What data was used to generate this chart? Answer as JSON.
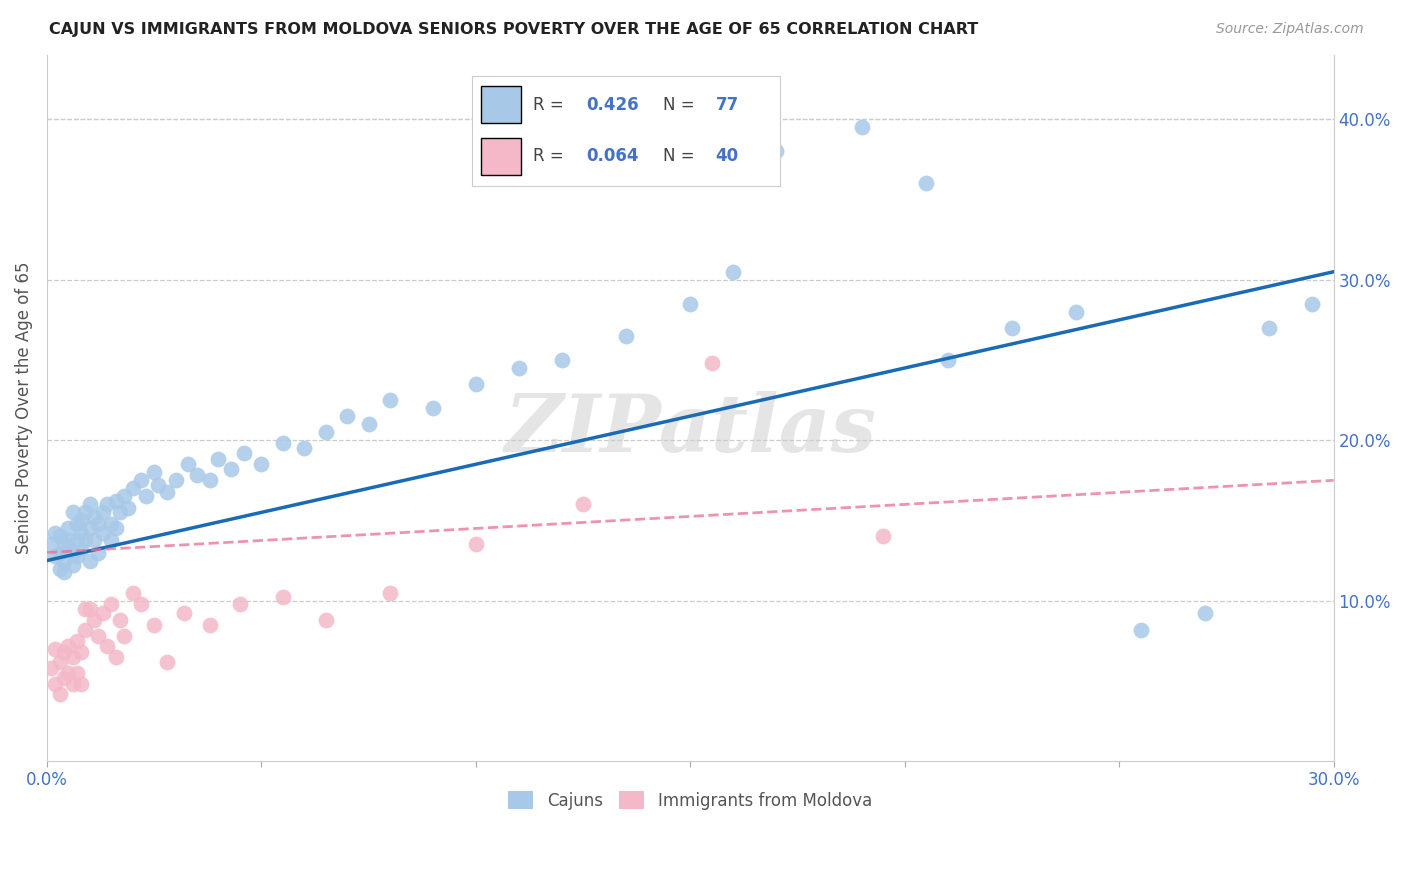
{
  "title": "CAJUN VS IMMIGRANTS FROM MOLDOVA SENIORS POVERTY OVER THE AGE OF 65 CORRELATION CHART",
  "source": "Source: ZipAtlas.com",
  "ylabel": "Seniors Poverty Over the Age of 65",
  "xlim": [
    0.0,
    0.3
  ],
  "ylim": [
    0.0,
    0.44
  ],
  "xticks": [
    0.0,
    0.3
  ],
  "xtick_labels": [
    "0.0%",
    "30.0%"
  ],
  "yticks": [
    0.1,
    0.2,
    0.3,
    0.4
  ],
  "ytick_labels": [
    "10.0%",
    "20.0%",
    "30.0%",
    "40.0%"
  ],
  "legend1_color": "#a8c8e8",
  "legend2_color": "#f4b8c8",
  "line1_color": "#1a6bb5",
  "line2_color": "#e87090",
  "watermark": "ZIPatlas",
  "cajun_r": 0.426,
  "cajun_n": 77,
  "moldova_r": 0.064,
  "moldova_n": 40,
  "cajun_line_x0": 0.0,
  "cajun_line_y0": 0.125,
  "cajun_line_x1": 0.3,
  "cajun_line_y1": 0.305,
  "moldova_line_x0": 0.0,
  "moldova_line_y0": 0.13,
  "moldova_line_x1": 0.3,
  "moldova_line_y1": 0.175,
  "cajun_x": [
    0.001,
    0.002,
    0.002,
    0.003,
    0.003,
    0.003,
    0.004,
    0.004,
    0.004,
    0.005,
    0.005,
    0.005,
    0.006,
    0.006,
    0.006,
    0.007,
    0.007,
    0.007,
    0.008,
    0.008,
    0.008,
    0.009,
    0.009,
    0.01,
    0.01,
    0.01,
    0.011,
    0.011,
    0.012,
    0.012,
    0.013,
    0.013,
    0.014,
    0.015,
    0.015,
    0.016,
    0.016,
    0.017,
    0.018,
    0.019,
    0.02,
    0.022,
    0.023,
    0.025,
    0.026,
    0.028,
    0.03,
    0.033,
    0.035,
    0.038,
    0.04,
    0.043,
    0.046,
    0.05,
    0.055,
    0.06,
    0.065,
    0.07,
    0.075,
    0.08,
    0.09,
    0.1,
    0.11,
    0.12,
    0.135,
    0.15,
    0.16,
    0.17,
    0.19,
    0.205,
    0.21,
    0.225,
    0.24,
    0.255,
    0.27,
    0.285,
    0.295
  ],
  "cajun_y": [
    0.135,
    0.128,
    0.142,
    0.12,
    0.14,
    0.13,
    0.118,
    0.135,
    0.125,
    0.132,
    0.145,
    0.138,
    0.122,
    0.155,
    0.13,
    0.128,
    0.148,
    0.138,
    0.132,
    0.15,
    0.142,
    0.138,
    0.155,
    0.125,
    0.145,
    0.16,
    0.138,
    0.152,
    0.13,
    0.148,
    0.155,
    0.142,
    0.16,
    0.148,
    0.138,
    0.162,
    0.145,
    0.155,
    0.165,
    0.158,
    0.17,
    0.175,
    0.165,
    0.18,
    0.172,
    0.168,
    0.175,
    0.185,
    0.178,
    0.175,
    0.188,
    0.182,
    0.192,
    0.185,
    0.198,
    0.195,
    0.205,
    0.215,
    0.21,
    0.225,
    0.22,
    0.235,
    0.245,
    0.25,
    0.265,
    0.285,
    0.305,
    0.38,
    0.395,
    0.36,
    0.25,
    0.27,
    0.28,
    0.082,
    0.092,
    0.27,
    0.285
  ],
  "moldova_x": [
    0.001,
    0.002,
    0.002,
    0.003,
    0.003,
    0.004,
    0.004,
    0.005,
    0.005,
    0.006,
    0.006,
    0.007,
    0.007,
    0.008,
    0.008,
    0.009,
    0.009,
    0.01,
    0.011,
    0.012,
    0.013,
    0.014,
    0.015,
    0.016,
    0.017,
    0.018,
    0.02,
    0.022,
    0.025,
    0.028,
    0.032,
    0.038,
    0.045,
    0.055,
    0.065,
    0.08,
    0.1,
    0.125,
    0.155,
    0.195
  ],
  "moldova_y": [
    0.058,
    0.048,
    0.07,
    0.042,
    0.062,
    0.052,
    0.068,
    0.055,
    0.072,
    0.048,
    0.065,
    0.055,
    0.075,
    0.048,
    0.068,
    0.082,
    0.095,
    0.095,
    0.088,
    0.078,
    0.092,
    0.072,
    0.098,
    0.065,
    0.088,
    0.078,
    0.105,
    0.098,
    0.085,
    0.062,
    0.092,
    0.085,
    0.098,
    0.102,
    0.088,
    0.105,
    0.135,
    0.16,
    0.248,
    0.14
  ]
}
